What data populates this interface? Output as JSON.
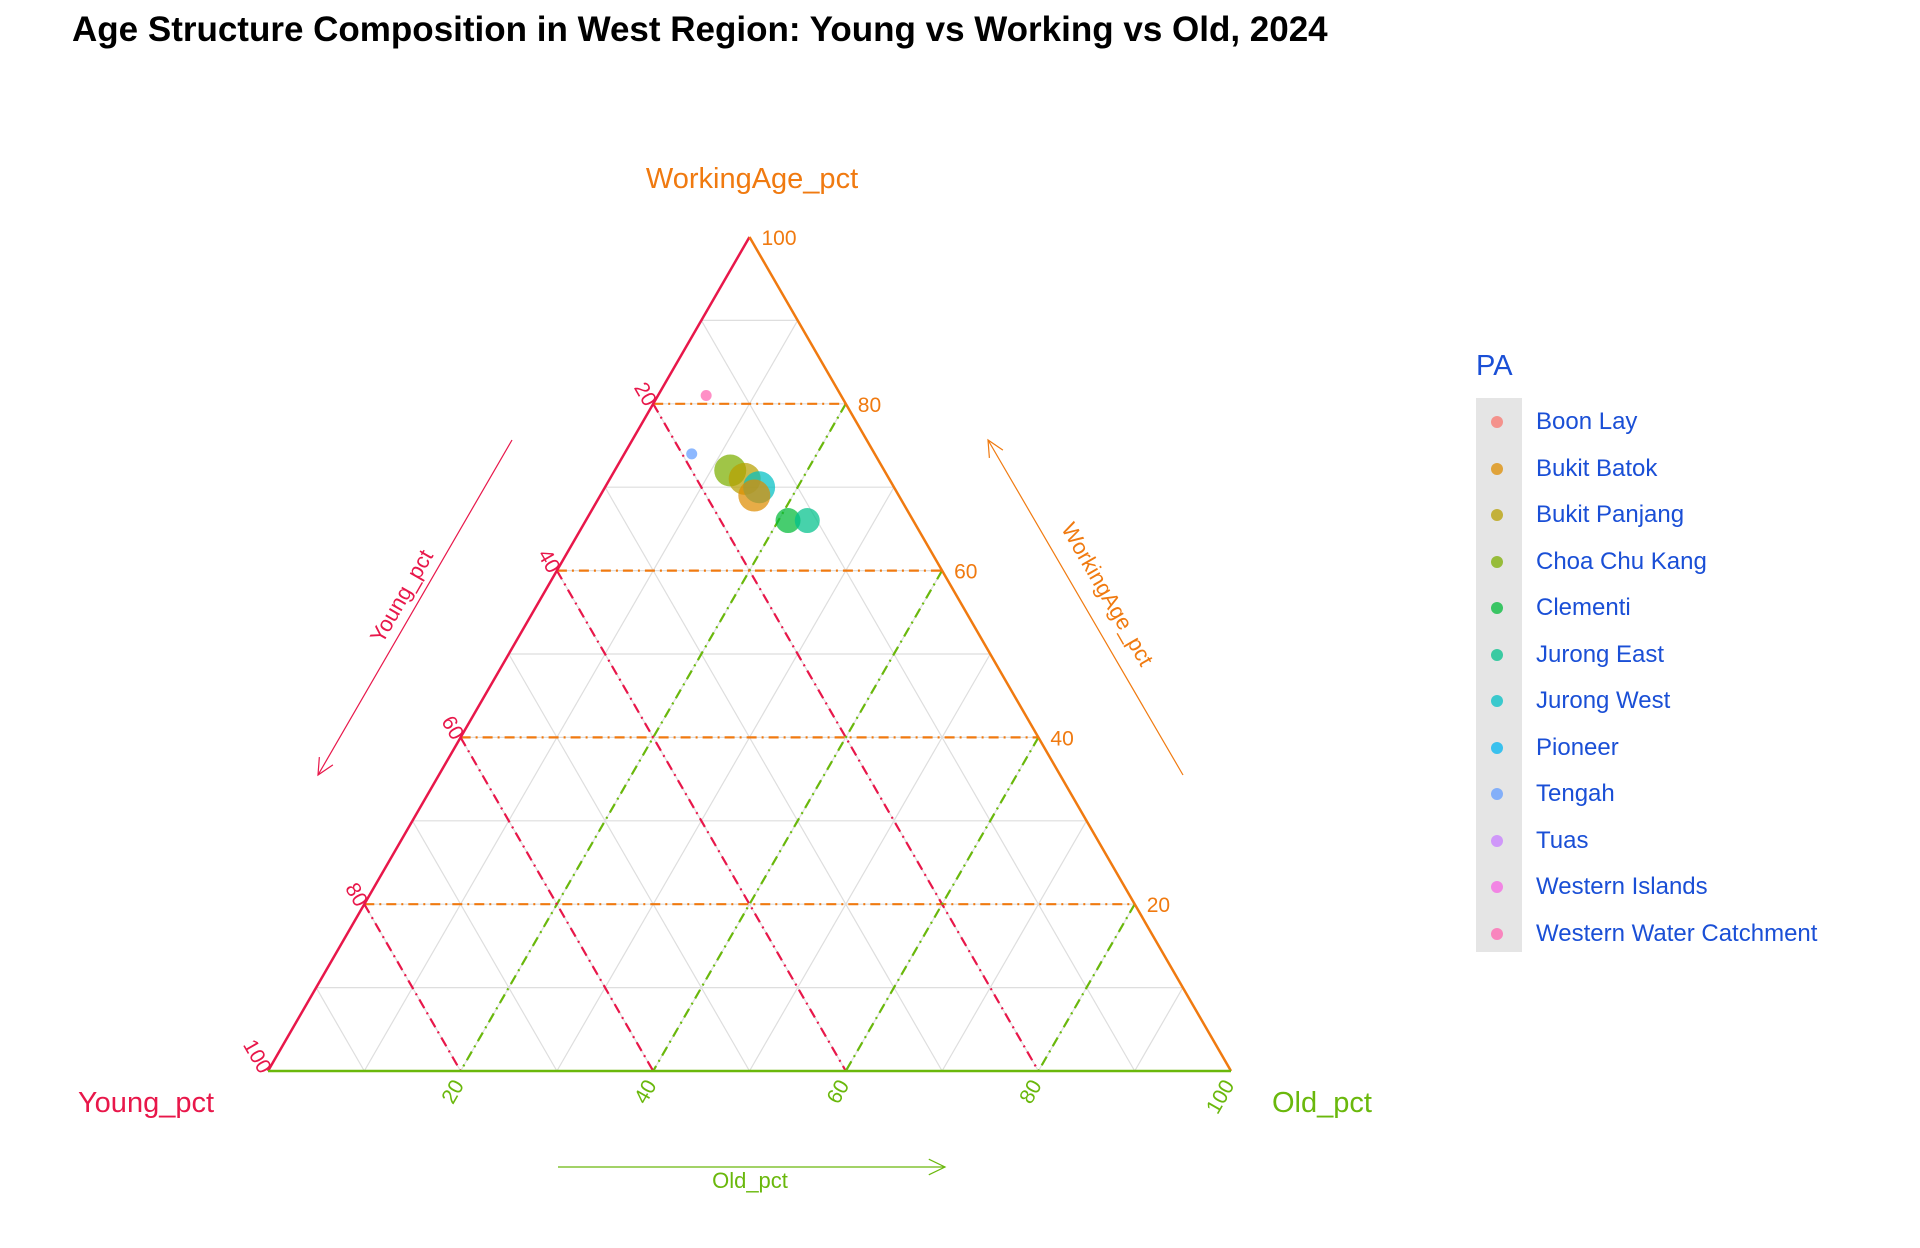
{
  "chart_data": {
    "type": "scatter",
    "subtype": "ternary",
    "title": "Age Structure Composition in West Region: Young vs Working vs Old, 2024",
    "axes": {
      "young": {
        "label": "Young_pct",
        "arrow_label": "Young_pct",
        "ticks": [
          "20",
          "40",
          "60",
          "80",
          "100"
        ],
        "color": "#e8174a"
      },
      "working": {
        "label": "WorkingAge_pct",
        "arrow_label": "WorkingAge_pct",
        "ticks": [
          "20",
          "40",
          "60",
          "80",
          "100"
        ],
        "color": "#f07a10"
      },
      "old": {
        "label": "Old_pct",
        "arrow_label": "Old_pct",
        "ticks": [
          "20",
          "40",
          "60",
          "80",
          "100"
        ],
        "color": "#6ab80c"
      }
    },
    "grid": true,
    "legend": {
      "title": "PA",
      "position": "right",
      "items": [
        {
          "name": "Boon Lay",
          "color": "#f8766d"
        },
        {
          "name": "Bukit Batok",
          "color": "#de8c00"
        },
        {
          "name": "Bukit Panjang",
          "color": "#b79f00"
        },
        {
          "name": "Choa Chu Kang",
          "color": "#7cae00"
        },
        {
          "name": "Clementi",
          "color": "#00ba38"
        },
        {
          "name": "Jurong East",
          "color": "#00c08b"
        },
        {
          "name": "Jurong West",
          "color": "#00bfc4"
        },
        {
          "name": "Pioneer",
          "color": "#00b4f0"
        },
        {
          "name": "Tengah",
          "color": "#619cff"
        },
        {
          "name": "Tuas",
          "color": "#c77cff"
        },
        {
          "name": "Western Islands",
          "color": "#f564e3"
        },
        {
          "name": "Western Water Catchment",
          "color": "#ff64b0"
        }
      ]
    },
    "points": [
      {
        "name": "Western Water Catchment",
        "young": 14,
        "working": 81,
        "old": 5,
        "size": 1
      },
      {
        "name": "Tengah",
        "young": 19,
        "working": 74,
        "old": 7,
        "size": 1
      },
      {
        "name": "Choa Chu Kang",
        "young": 16,
        "working": 72,
        "old": 12,
        "size": 4
      },
      {
        "name": "Bukit Panjang",
        "young": 15,
        "working": 71,
        "old": 14,
        "size": 4
      },
      {
        "name": "Jurong West",
        "young": 14,
        "working": 70,
        "old": 16,
        "size": 4
      },
      {
        "name": "Bukit Batok",
        "young": 15,
        "working": 69,
        "old": 16,
        "size": 4
      },
      {
        "name": "Clementi",
        "young": 13,
        "working": 66,
        "old": 21,
        "size": 3
      },
      {
        "name": "Jurong East",
        "young": 11,
        "working": 66,
        "old": 23,
        "size": 3
      }
    ]
  }
}
